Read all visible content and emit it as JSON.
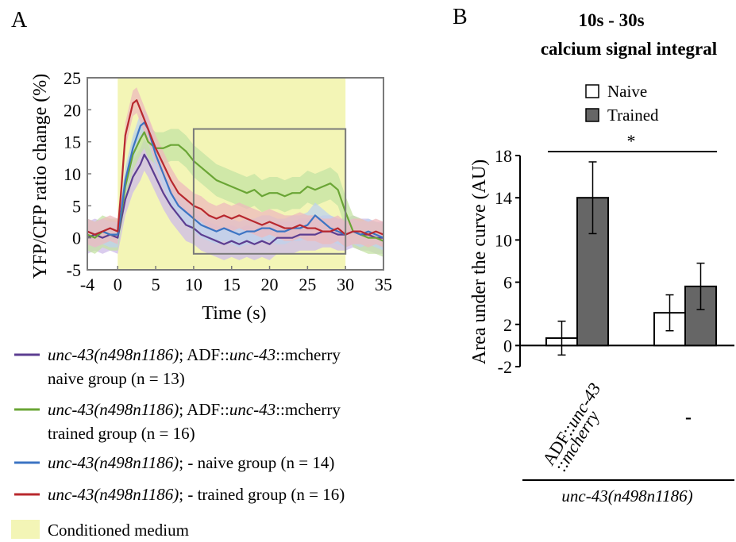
{
  "panels": {
    "a": "A",
    "b": "B"
  },
  "chart_data": [
    {
      "type": "line",
      "panel": "A",
      "xlabel": "Time (s)",
      "ylabel": "YFP/CFP ratio change (%)",
      "xlim": [
        -4,
        35
      ],
      "ylim": [
        -5,
        25
      ],
      "x_ticks": [
        "-4",
        "0",
        "5",
        "10",
        "15",
        "20",
        "25",
        "30",
        "35"
      ],
      "y_ticks": [
        "-5",
        "0",
        "5",
        "10",
        "15",
        "20",
        "25"
      ],
      "shaded_region": {
        "label": "Conditioned medium",
        "x": [
          0,
          30
        ],
        "color": "#f3f5b6"
      },
      "highlight_box": {
        "x": [
          10,
          30
        ],
        "y": [
          -2.5,
          17
        ]
      },
      "series": [
        {
          "key": "adf_naive",
          "color": "#5c3d91",
          "band": "#cdbbe8",
          "legend_parts": [
            "unc-43(n498n1186)",
            "; ADF::",
            "unc-43",
            "::mcherry"
          ],
          "legend_line2": "naive group (n = 13)",
          "x": [
            -4,
            -3,
            -2,
            -1,
            0,
            0.5,
            1,
            2,
            3,
            3.5,
            4,
            5,
            6,
            7,
            8,
            9,
            10,
            11,
            12,
            13,
            14,
            15,
            16,
            17,
            18,
            19,
            20,
            21,
            22,
            23,
            24,
            25,
            26,
            27,
            28,
            29,
            30,
            31,
            32,
            33,
            34,
            35
          ],
          "y": [
            0,
            0.5,
            0,
            0.5,
            0,
            3,
            6,
            9.5,
            11.5,
            13,
            12,
            9.5,
            7,
            5,
            3.5,
            2,
            1.5,
            0.5,
            0,
            -0.5,
            -1,
            -0.5,
            -1,
            -0.5,
            -1,
            -0.5,
            -1,
            0,
            0,
            0,
            0.5,
            0.5,
            0.5,
            1,
            1,
            0.5,
            0.5,
            1,
            0.5,
            0.5,
            0,
            0
          ],
          "err": 2.5
        },
        {
          "key": "adf_trained",
          "color": "#6aa535",
          "band": "#c4e3a3",
          "legend_parts": [
            "unc-43(n498n1186)",
            "; ADF::",
            "unc-43",
            "::mcherry"
          ],
          "legend_line2": "trained group (n = 16)",
          "x": [
            -4,
            -3,
            -2,
            -1,
            0,
            0.5,
            1,
            2,
            3,
            3.5,
            4,
            5,
            6,
            7,
            8,
            9,
            10,
            11,
            12,
            13,
            14,
            15,
            16,
            17,
            18,
            19,
            20,
            21,
            22,
            23,
            24,
            25,
            26,
            27,
            28,
            29,
            30,
            31,
            32,
            33,
            34,
            35
          ],
          "y": [
            0.5,
            0,
            1,
            0.5,
            0.5,
            4,
            8,
            13,
            15.5,
            16.5,
            15,
            14,
            14,
            14.5,
            14.5,
            13.5,
            12,
            11,
            10,
            9,
            8.5,
            8,
            7.5,
            7,
            7.5,
            6.5,
            7,
            7,
            6.5,
            7,
            7,
            8,
            7.5,
            8,
            8.5,
            7.5,
            4,
            1,
            0.5,
            0,
            0,
            -0.5
          ],
          "err": 2.5
        },
        {
          "key": "mut_naive",
          "color": "#3c74c3",
          "band": "#bdd2ee",
          "legend_parts": [
            "unc-43(n498n1186)",
            "; - naive group (n = 14)"
          ],
          "x": [
            -4,
            -3,
            -2,
            -1,
            0,
            0.5,
            1,
            2,
            3,
            3.5,
            4,
            5,
            6,
            7,
            8,
            9,
            10,
            11,
            12,
            13,
            14,
            15,
            16,
            17,
            18,
            19,
            20,
            21,
            22,
            23,
            24,
            25,
            26,
            27,
            28,
            29,
            30,
            31,
            32,
            33,
            34,
            35
          ],
          "y": [
            1,
            0.5,
            1,
            0.5,
            0.5,
            4.5,
            9,
            14,
            17.5,
            18,
            17,
            13,
            10,
            7,
            5,
            4,
            3,
            2,
            1.5,
            1,
            1.5,
            1,
            0.5,
            1,
            1,
            1.5,
            1.5,
            1,
            1,
            1.5,
            1.5,
            2,
            3.5,
            2.5,
            1.5,
            1,
            0.5,
            1,
            0.5,
            1,
            0.5,
            0
          ],
          "err": 2.0
        },
        {
          "key": "mut_trained",
          "color": "#b8282e",
          "band": "#eebabc",
          "legend_parts": [
            "unc-43(n498n1186)",
            "; - trained group (n = 16)"
          ],
          "x": [
            -4,
            -3,
            -2,
            -1,
            0,
            0.5,
            1,
            2,
            2.5,
            3,
            4,
            5,
            6,
            7,
            8,
            9,
            10,
            11,
            12,
            13,
            14,
            15,
            16,
            17,
            18,
            19,
            20,
            21,
            22,
            23,
            24,
            25,
            26,
            27,
            28,
            29,
            30,
            31,
            32,
            33,
            34,
            35
          ],
          "y": [
            1,
            0.5,
            1,
            1.5,
            1,
            8,
            16,
            21,
            21.5,
            20,
            17,
            14,
            11.5,
            9,
            7,
            6,
            5,
            4.5,
            3.5,
            3,
            3.5,
            3,
            3.5,
            3,
            2.5,
            2,
            2.5,
            2,
            1.5,
            1.5,
            2,
            1.5,
            1.5,
            1,
            1,
            1.5,
            0.5,
            1,
            1,
            0.5,
            1,
            0.5
          ],
          "err": 2.0
        }
      ]
    },
    {
      "type": "bar",
      "panel": "B",
      "title_lines": [
        "10s - 30s",
        "calcium signal integral"
      ],
      "ylabel": "Area under the curve (AU)",
      "ylim": [
        -2,
        18
      ],
      "y_ticks": [
        "-2",
        "0",
        "2",
        "6",
        "10",
        "14",
        "18"
      ],
      "y_tick_values": [
        -2,
        0,
        2,
        6,
        10,
        14,
        18
      ],
      "categories": [
        "ADF::unc-43 ::mcherry",
        "-"
      ],
      "category_label_parts": [
        "ADF::",
        "unc-43",
        "::",
        "mcherry"
      ],
      "group_label": "unc-43(n498n1186)",
      "significance": "*",
      "series": [
        {
          "name": "Naive",
          "color": "#ffffff",
          "values": [
            0.7,
            3.1
          ],
          "errors": [
            1.6,
            1.7
          ]
        },
        {
          "name": "Trained",
          "color": "#666666",
          "values": [
            14.0,
            5.6
          ],
          "errors": [
            3.4,
            2.2
          ]
        }
      ]
    }
  ]
}
